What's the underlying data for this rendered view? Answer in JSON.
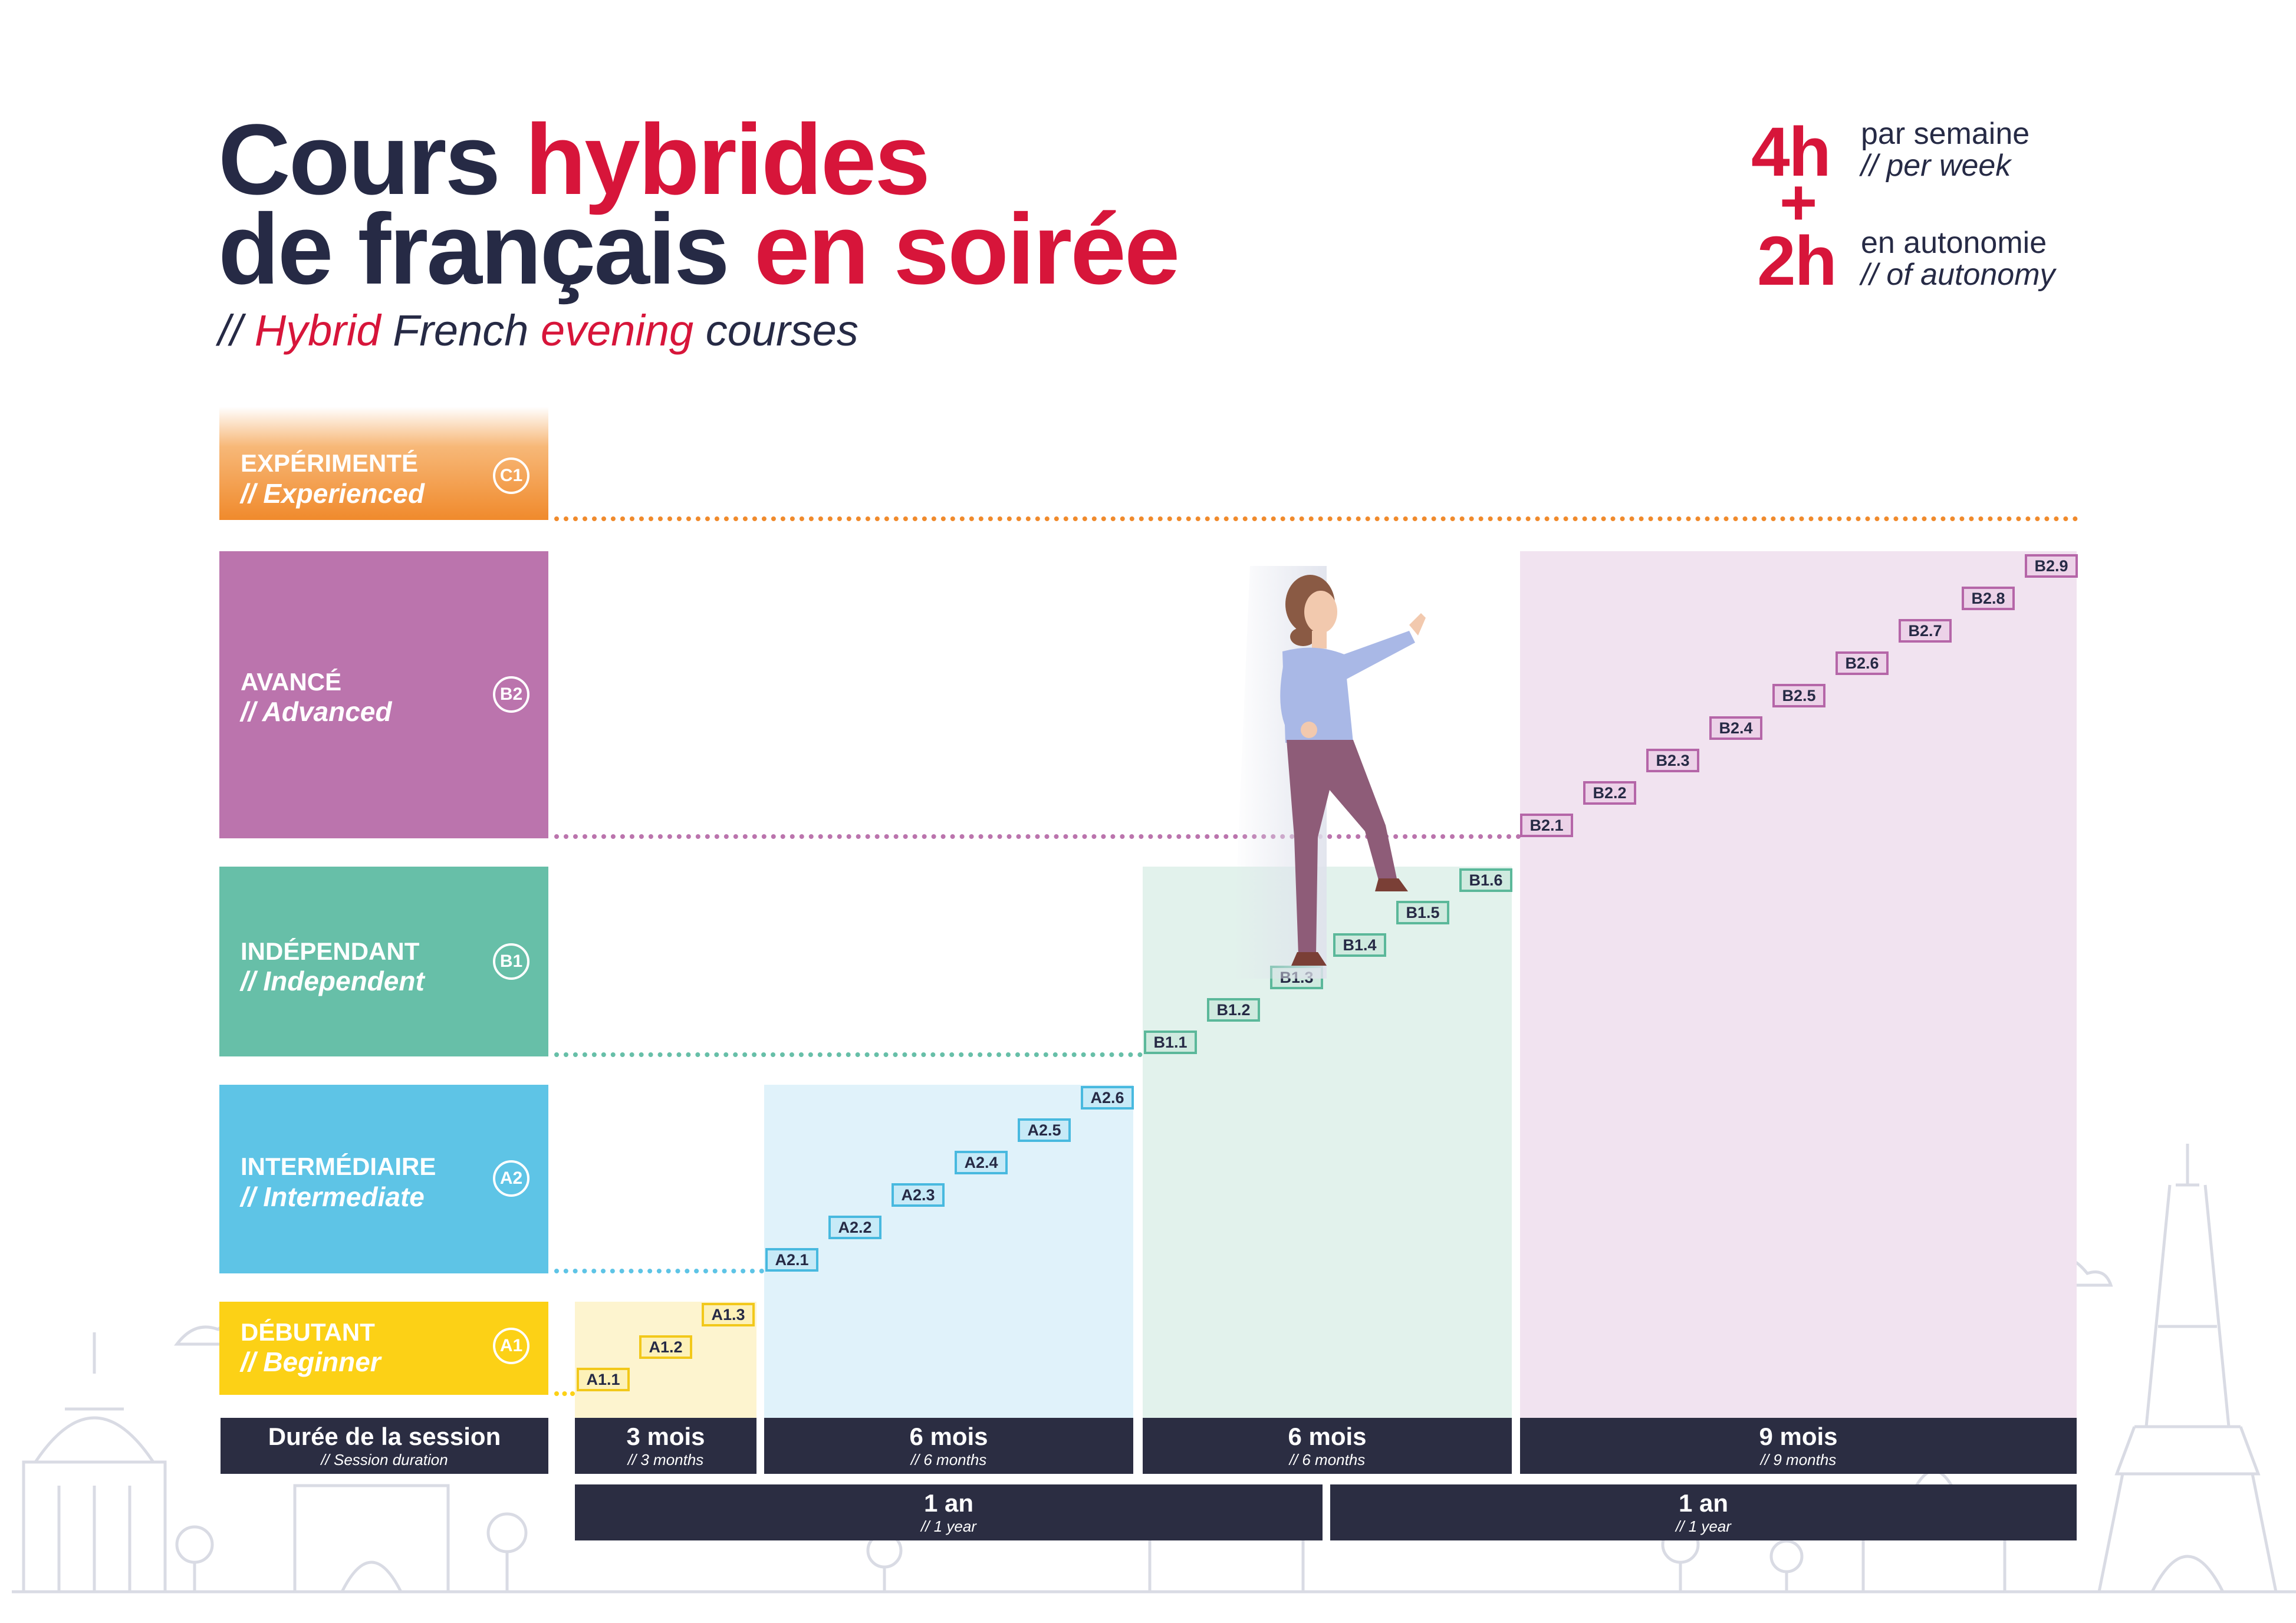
{
  "title": {
    "line1_a": "Cours ",
    "line1_b": "hybrides",
    "line2_a": "de français ",
    "line2_b": "en soirée"
  },
  "subtitle": {
    "a": "// ",
    "b": "Hybrid",
    "c": " French ",
    "d": "evening",
    "e": " courses"
  },
  "hours": {
    "h1": "4h",
    "h1_fr": "par semaine",
    "h1_en": "// per week",
    "plus": "+",
    "h2": "2h",
    "h2_fr": "en autonomie",
    "h2_en": "// of autonomy"
  },
  "levels": [
    {
      "fr": "EXPÉRIMENTÉ",
      "en": "// Experienced",
      "code": "C1",
      "color": "#f08a2c"
    },
    {
      "fr": "AVANCÉ",
      "en": "// Advanced",
      "code": "B2",
      "color": "#bb74ad"
    },
    {
      "fr": "INDÉPENDANT",
      "en": "// Independent",
      "code": "B1",
      "color": "#67bfa8"
    },
    {
      "fr": "INTERMÉDIAIRE",
      "en": "// Intermediate",
      "code": "A2",
      "color": "#5ec4e6"
    },
    {
      "fr": "DÉBUTANT",
      "en": "// Beginner",
      "code": "A1",
      "color": "#fcd116"
    }
  ],
  "steps": {
    "a1": [
      "A1.1",
      "A1.2",
      "A1.3"
    ],
    "a2": [
      "A2.1",
      "A2.2",
      "A2.3",
      "A2.4",
      "A2.5",
      "A2.6"
    ],
    "b1": [
      "B1.1",
      "B1.2",
      "B1.3",
      "B1.4",
      "B1.5",
      "B1.6"
    ],
    "b2": [
      "B2.1",
      "B2.2",
      "B2.3",
      "B2.4",
      "B2.5",
      "B2.6",
      "B2.7",
      "B2.8",
      "B2.9"
    ]
  },
  "duration": {
    "label": {
      "t": "Durée de la session",
      "s": "// Session duration"
    },
    "sessions": [
      {
        "t": "3 mois",
        "s": "// 3 months"
      },
      {
        "t": "6 mois",
        "s": "// 6 months"
      },
      {
        "t": "6 mois",
        "s": "// 6 months"
      },
      {
        "t": "9 mois",
        "s": "// 9 months"
      }
    ],
    "years": [
      {
        "t": "1 an",
        "s": "// 1 year"
      },
      {
        "t": "1 an",
        "s": "// 1 year"
      }
    ]
  }
}
